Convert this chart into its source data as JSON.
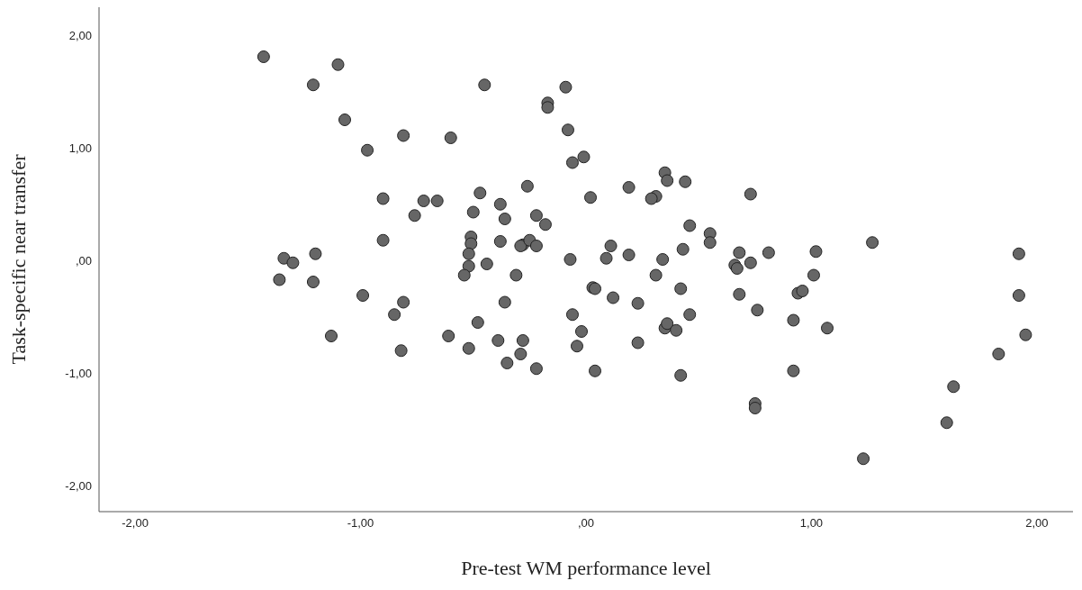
{
  "chart_data": {
    "type": "scatter",
    "xlabel": "Pre-test WM performance level",
    "ylabel": "Task-specific near transfer",
    "xlim": [
      -2.16,
      2.16
    ],
    "ylim": [
      -2.23,
      2.25
    ],
    "xticks": [
      {
        "value": -2,
        "label": "-2,00"
      },
      {
        "value": -1,
        "label": "-1,00"
      },
      {
        "value": 0,
        "label": ",00"
      },
      {
        "value": 1,
        "label": "1,00"
      },
      {
        "value": 2,
        "label": "2,00"
      }
    ],
    "yticks": [
      {
        "value": -2,
        "label": "-2,00"
      },
      {
        "value": -1,
        "label": "-1,00"
      },
      {
        "value": 0,
        "label": ",00"
      },
      {
        "value": 1,
        "label": "1,00"
      },
      {
        "value": 2,
        "label": "2,00"
      }
    ],
    "grid": false,
    "legend": false,
    "marker": "circle",
    "series": [
      {
        "color": "#666666",
        "x": [
          -1.43,
          -1.1,
          -1.21,
          -1.07,
          -0.97,
          -0.81,
          -0.6,
          -0.45,
          -0.17,
          -0.17,
          -0.09,
          -0.08,
          -0.06,
          -0.01,
          -0.9,
          -0.72,
          -0.66,
          -0.76,
          -0.47,
          -0.38,
          -0.26,
          -0.5,
          -0.36,
          -0.22,
          -0.18,
          0.02,
          0.19,
          0.31,
          0.29,
          0.35,
          0.36,
          0.44,
          0.73,
          -0.9,
          -1.34,
          -1.3,
          -1.2,
          -1.36,
          -1.21,
          -1.13,
          -0.99,
          -0.85,
          -0.81,
          -0.82,
          -0.61,
          -0.51,
          -0.51,
          -0.52,
          -0.52,
          -0.44,
          -0.54,
          -0.48,
          -0.52,
          -0.38,
          -0.28,
          -0.29,
          -0.25,
          -0.22,
          -0.31,
          -0.36,
          -0.39,
          -0.28,
          -0.29,
          -0.35,
          -0.22,
          -0.07,
          -0.06,
          -0.04,
          -0.02,
          0.03,
          0.04,
          0.04,
          0.11,
          0.09,
          0.12,
          0.19,
          0.23,
          0.23,
          0.31,
          0.34,
          0.35,
          0.36,
          0.4,
          0.42,
          0.43,
          0.42,
          0.46,
          0.46,
          0.55,
          0.55,
          0.66,
          0.67,
          0.68,
          0.68,
          0.73,
          0.75,
          0.75,
          0.76,
          0.81,
          0.92,
          0.92,
          0.94,
          0.96,
          1.01,
          1.02,
          1.07,
          1.27,
          1.23,
          1.6,
          1.63,
          1.83,
          1.92,
          1.92,
          1.95
        ],
        "values": [
          1.81,
          1.74,
          1.56,
          1.25,
          0.98,
          1.11,
          1.09,
          1.56,
          1.4,
          1.36,
          1.54,
          1.16,
          0.87,
          0.92,
          0.55,
          0.53,
          0.53,
          0.4,
          0.6,
          0.5,
          0.66,
          0.43,
          0.37,
          0.4,
          0.32,
          0.56,
          0.65,
          0.57,
          0.55,
          0.78,
          0.71,
          0.7,
          0.59,
          0.18,
          0.02,
          -0.02,
          0.06,
          -0.17,
          -0.19,
          -0.67,
          -0.31,
          -0.48,
          -0.37,
          -0.8,
          -0.67,
          0.21,
          0.15,
          0.06,
          -0.05,
          -0.03,
          -0.13,
          -0.55,
          -0.78,
          0.17,
          0.14,
          0.13,
          0.18,
          0.13,
          -0.13,
          -0.37,
          -0.71,
          -0.71,
          -0.83,
          -0.91,
          -0.96,
          0.01,
          -0.48,
          -0.76,
          -0.63,
          -0.24,
          -0.25,
          -0.98,
          0.13,
          0.02,
          -0.33,
          0.05,
          -0.38,
          -0.73,
          -0.13,
          0.01,
          -0.6,
          -0.56,
          -0.62,
          -0.25,
          0.1,
          -1.02,
          0.31,
          -0.48,
          0.24,
          0.16,
          -0.04,
          -0.07,
          0.07,
          -0.3,
          -0.02,
          -1.27,
          -1.31,
          -0.44,
          0.07,
          -0.53,
          -0.98,
          -0.29,
          -0.27,
          -0.13,
          0.08,
          -0.6,
          0.16,
          -1.76,
          -1.44,
          -1.12,
          -0.83,
          0.06,
          -0.31,
          -0.66
        ]
      }
    ]
  }
}
